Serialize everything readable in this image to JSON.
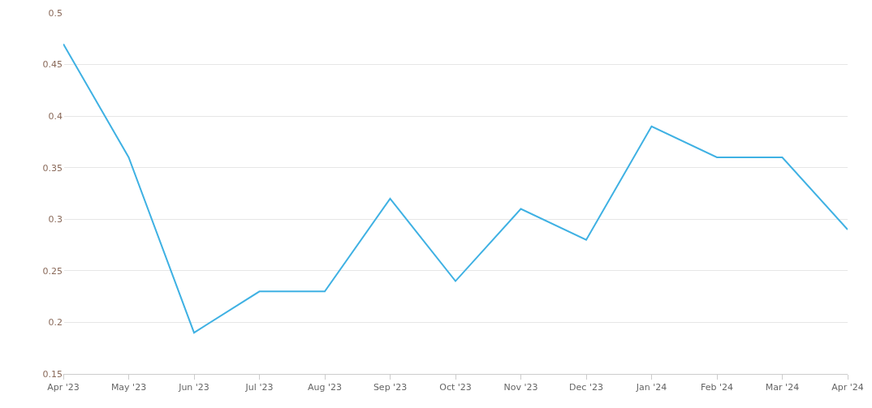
{
  "chart_data": {
    "type": "line",
    "categories": [
      "Apr '23",
      "May '23",
      "Jun '23",
      "Jul '23",
      "Aug '23",
      "Sep '23",
      "Oct '23",
      "Nov '23",
      "Dec '23",
      "Jan '24",
      "Feb '24",
      "Mar '24",
      "Apr '24"
    ],
    "series": [
      {
        "color": "#3fb1e3",
        "values": [
          0.47,
          0.36,
          0.19,
          0.23,
          0.23,
          0.32,
          0.24,
          0.31,
          0.28,
          0.39,
          0.36,
          0.36,
          0.29
        ]
      }
    ],
    "ylim": [
      0.15,
      0.5
    ],
    "yticks": [
      0.15,
      0.2,
      0.25,
      0.3,
      0.35,
      0.4,
      0.45,
      0.5
    ],
    "grid": "y",
    "marker": "none",
    "line_style": "solid"
  }
}
